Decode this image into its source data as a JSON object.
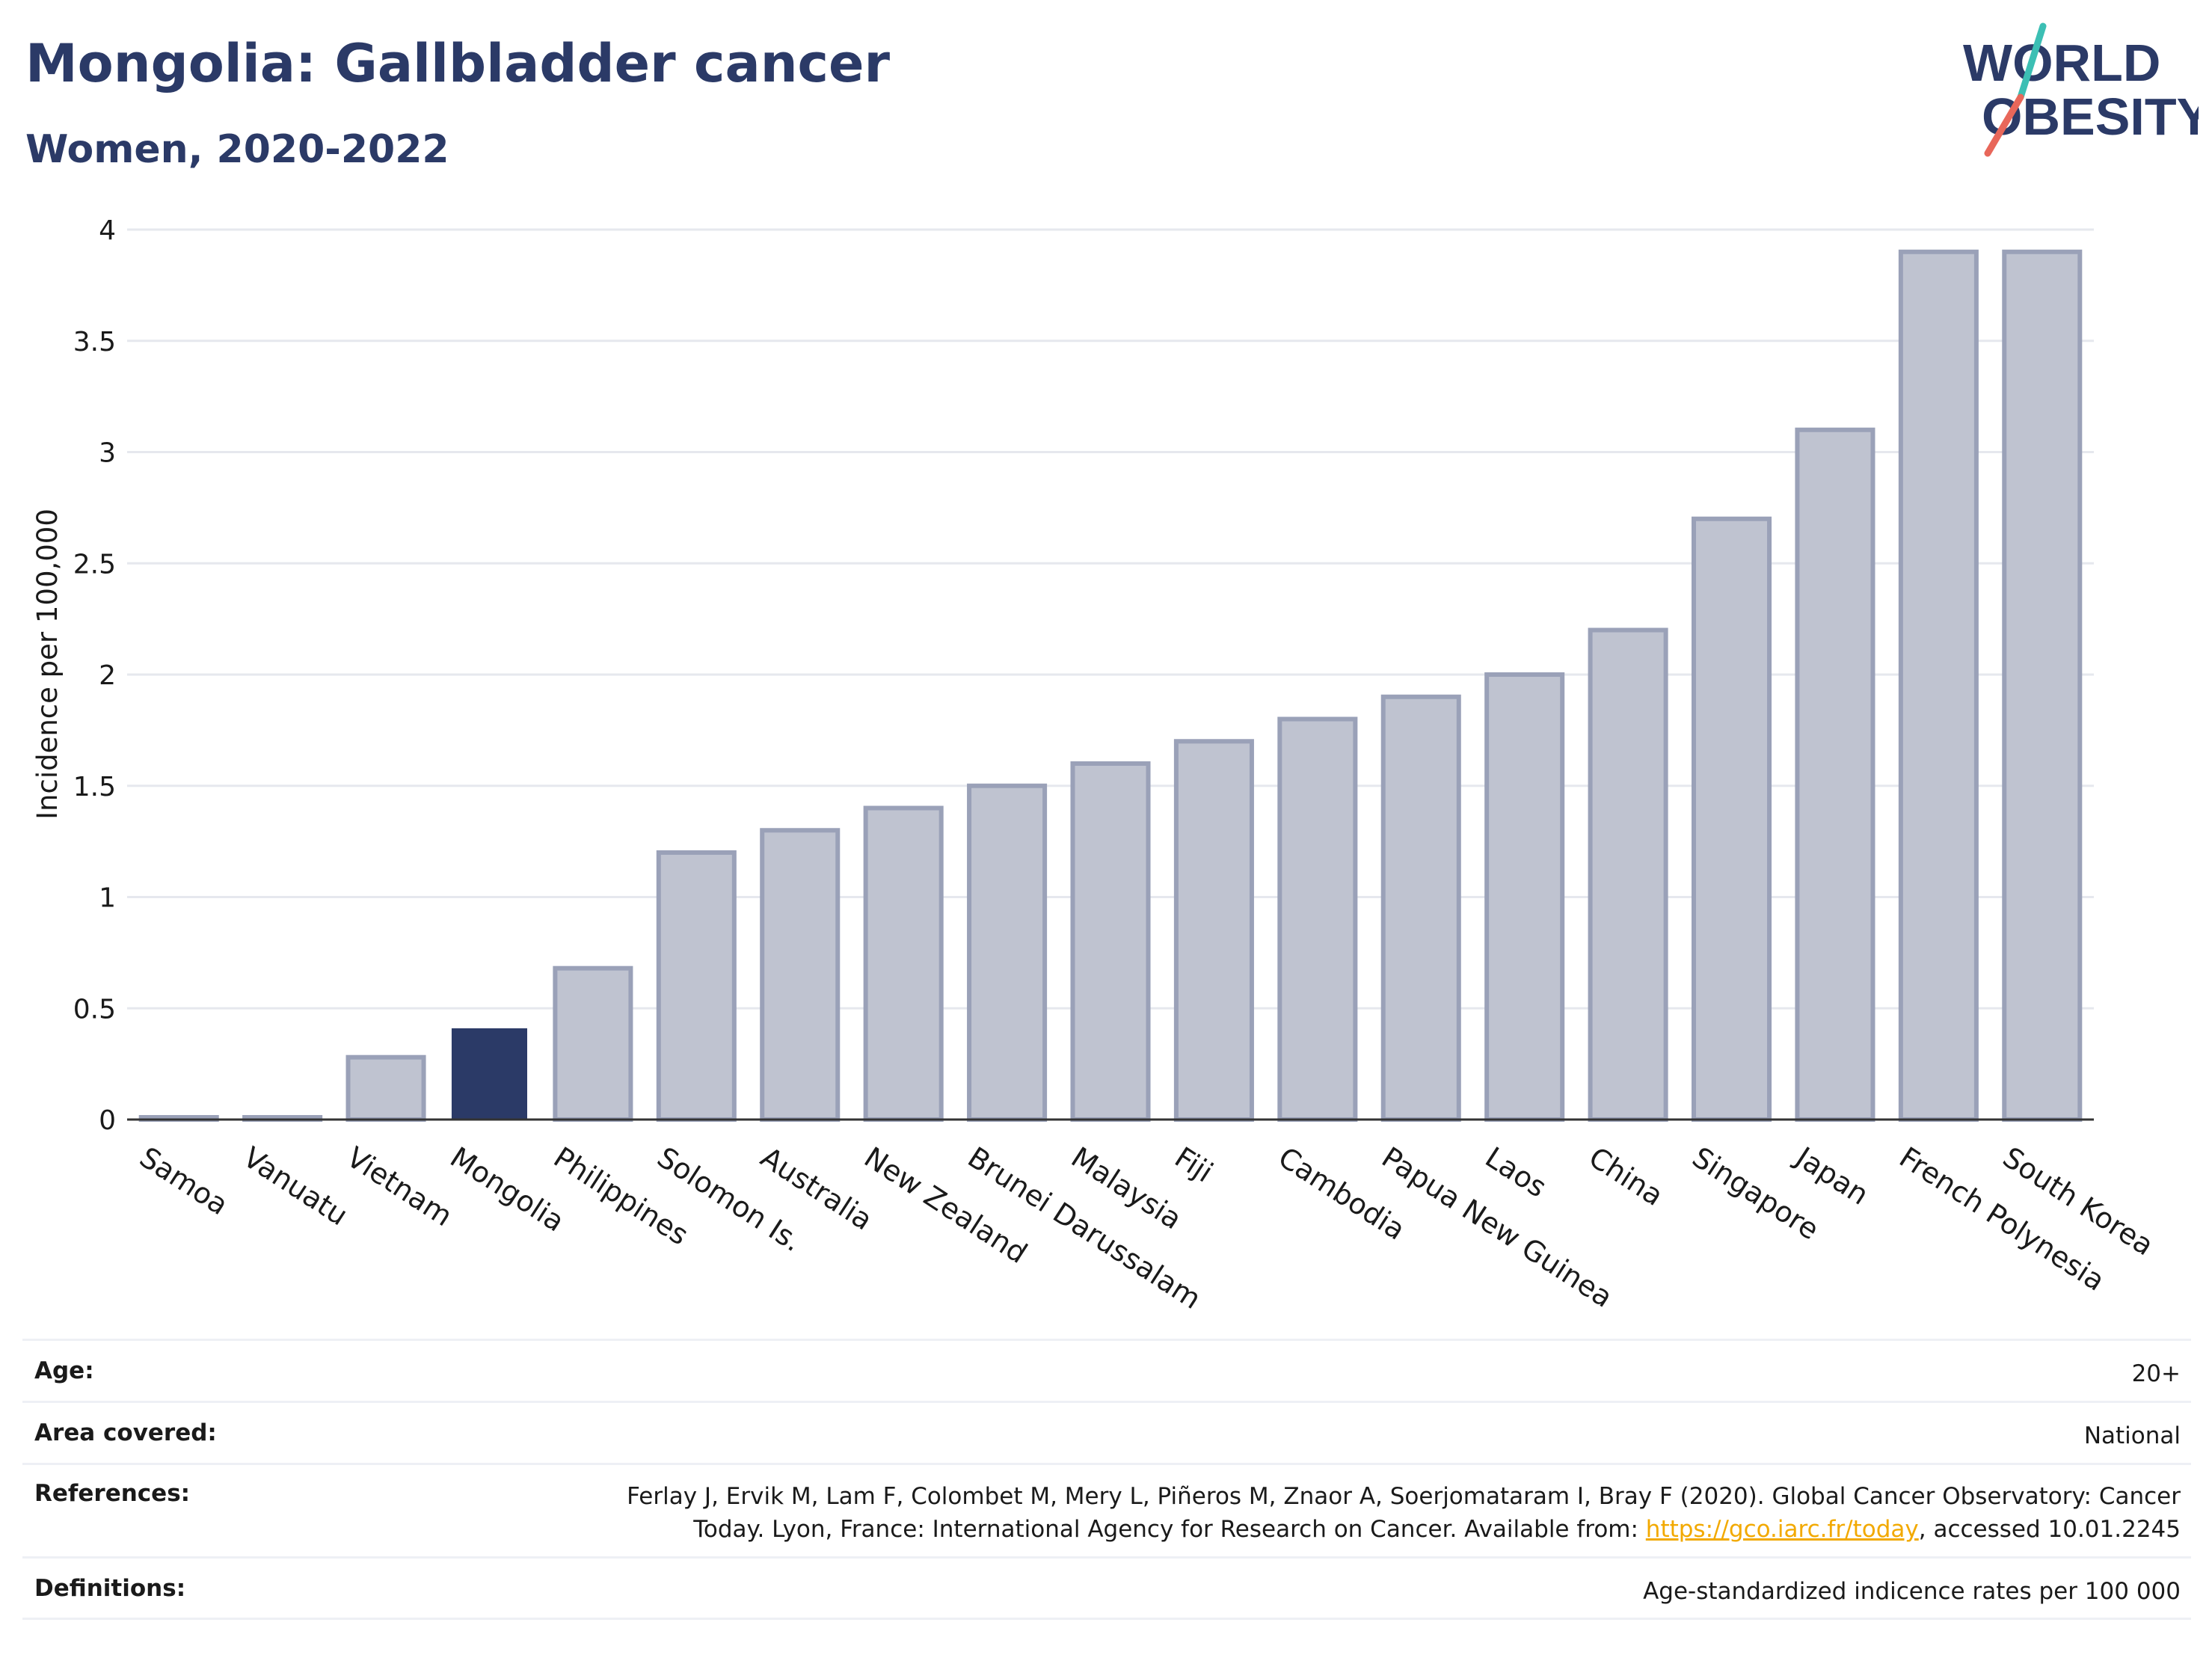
{
  "header": {
    "title": "Mongolia: Gallbladder cancer",
    "subtitle": "Women, 2020-2022"
  },
  "logo": {
    "line1": "WORLD",
    "line2": "OBESITY",
    "colors": {
      "text": "#2b3a67",
      "slash_top": "#3cbfb4",
      "slash_bottom": "#e8675a"
    }
  },
  "chart_data": {
    "type": "bar",
    "ylabel": "Incidence per 100,000",
    "xlabel": "",
    "ylim": [
      0,
      4
    ],
    "yticks": [
      "0",
      "0.5",
      "1",
      "1.5",
      "2",
      "2.5",
      "3",
      "3.5",
      "4"
    ],
    "grid": true,
    "highlight": "Mongolia",
    "colors": {
      "bar_fill": "#bfc3d0",
      "bar_stroke": "#9aa1b8",
      "highlight_fill": "#2b3a67",
      "grid": "#e6e8ee",
      "axis": "#333333"
    },
    "categories": [
      "Samoa",
      "Vanuatu",
      "Vietnam",
      "Mongolia",
      "Philippines",
      "Solomon Is.",
      "Australia",
      "New Zealand",
      "Brunei Darussalam",
      "Malaysia",
      "Fiji",
      "Cambodia",
      "Papua New Guinea",
      "Laos",
      "China",
      "Singapore",
      "Japan",
      "French Polynesia",
      "South Korea"
    ],
    "values": [
      0.01,
      0.01,
      0.28,
      0.41,
      0.68,
      1.2,
      1.3,
      1.4,
      1.5,
      1.6,
      1.7,
      1.8,
      1.9,
      2.0,
      2.2,
      2.7,
      3.1,
      3.9,
      3.9
    ]
  },
  "meta": {
    "age_label": "Age:",
    "age_value": "20+",
    "area_label": "Area covered:",
    "area_value": "National",
    "references_label": "References:",
    "references_line1": "Ferlay J, Ervik M, Lam F, Colombet M, Mery L, Piñeros M, Znaor A, Soerjomataram I, Bray F (2020). Global Cancer Observatory: Cancer",
    "references_line2_pre": "Today. Lyon, France: International Agency for Research on Cancer. Available from: ",
    "references_link": "https://gco.iarc.fr/today",
    "references_line2_post": ", accessed 10.01.2245",
    "definitions_label": "Definitions:",
    "definitions_value": "Age-standardized indicence rates per 100 000"
  }
}
